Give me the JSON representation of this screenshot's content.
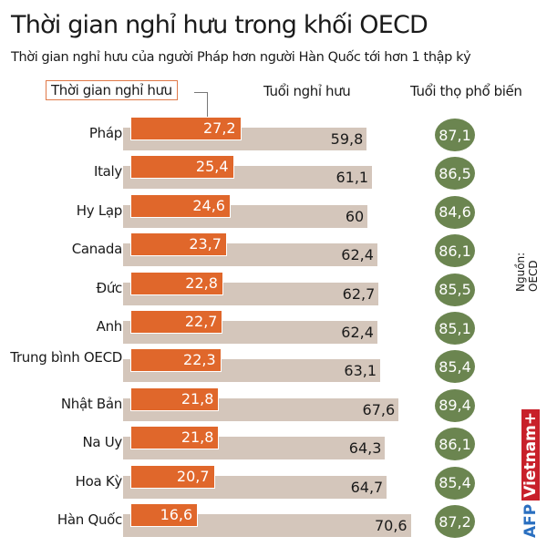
{
  "title": "Thời gian nghỉ hưu trong khối OECD",
  "subtitle": "Thời gian nghỉ hưu của người Pháp hơn người Hàn Quốc tới hơn 1 thập kỷ",
  "source": "Nguồn: OECD",
  "logo": {
    "afp": "AFP",
    "vietnam": "Vietnam+"
  },
  "colors": {
    "retirement_time": "#e0672b",
    "retirement_age": "#d4c6bb",
    "life_expectancy": "#6b8550"
  },
  "chart_data": {
    "type": "bar",
    "title": "Thời gian nghỉ hưu trong khối OECD",
    "categories": [
      "Pháp",
      "Italy",
      "Hy Lạp",
      "Canada",
      "Đức",
      "Anh",
      "Trung bình OECD",
      "Nhật Bản",
      "Na Uy",
      "Hoa Kỳ",
      "Hàn Quốc"
    ],
    "series": [
      {
        "name": "Thời gian nghỉ hưu",
        "values": [
          "27,2",
          "25,4",
          "24,6",
          "23,7",
          "22,8",
          "22,7",
          "22,3",
          "21,8",
          "21,8",
          "20,7",
          "16,6"
        ]
      },
      {
        "name": "Tuổi nghỉ hưu",
        "values": [
          "59,8",
          "61,1",
          "60",
          "62,4",
          "62,7",
          "62,4",
          "63,1",
          "67,6",
          "64,3",
          "64,7",
          "70,6"
        ]
      },
      {
        "name": "Tuổi thọ phổ biến",
        "values": [
          "87,1",
          "86,5",
          "84,6",
          "86,1",
          "85,5",
          "85,1",
          "85,4",
          "89,4",
          "86,1",
          "85,4",
          "87,2"
        ]
      }
    ]
  }
}
